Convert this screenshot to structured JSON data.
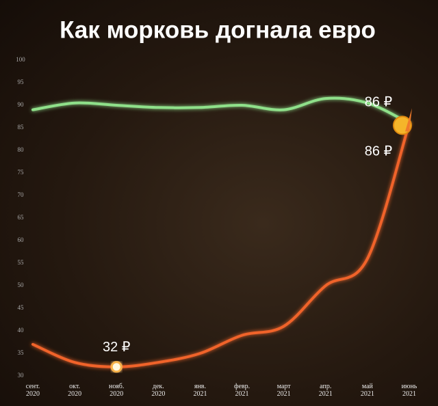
{
  "chart_data": {
    "type": "line",
    "title": "Как морковь догнала евро",
    "categories": [
      "сент.\n2020",
      "окт.\n2020",
      "нояб.\n2020",
      "дек.\n2020",
      "янв.\n2021",
      "февр.\n2021",
      "март\n2021",
      "апр.\n2021",
      "май\n2021",
      "июнь\n2021"
    ],
    "series": [
      {
        "color": "#8fe08a",
        "values": [
          89,
          90.5,
          90,
          89.5,
          89.5,
          90,
          89,
          91.5,
          90.5,
          86
        ],
        "value_labels": [
          null,
          null,
          null,
          null,
          null,
          null,
          null,
          null,
          null,
          "86 ₽"
        ]
      },
      {
        "color": "#f0642a",
        "values": [
          37,
          33,
          32,
          33,
          35,
          39,
          41,
          50,
          56,
          86
        ],
        "value_labels": [
          null,
          null,
          "32 ₽",
          null,
          null,
          null,
          null,
          null,
          null,
          "86 ₽"
        ]
      }
    ],
    "ylim": [
      30,
      100
    ],
    "yticks": [
      30,
      35,
      40,
      45,
      50,
      55,
      60,
      65,
      70,
      75,
      80,
      85,
      90,
      95,
      100
    ]
  }
}
